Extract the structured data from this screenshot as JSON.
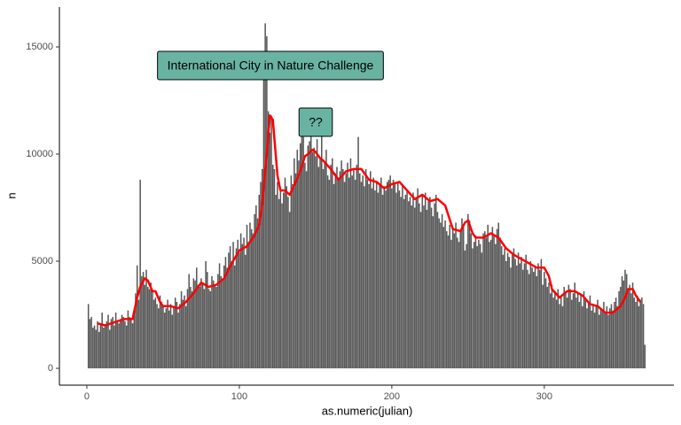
{
  "chart_data": {
    "type": "bar",
    "x_label": "as.numeric(julian)",
    "y_label": "n",
    "annotations": [
      "International City in Nature Challenge",
      "??"
    ],
    "color": "#595959",
    "xlim": [
      -18,
      385
    ],
    "ylim": [
      -785,
      16860
    ],
    "xticks": [
      0,
      100,
      200,
      300
    ],
    "yticks": [
      0,
      5000,
      10000,
      15000
    ],
    "x": [
      1,
      2,
      3,
      4,
      5,
      6,
      7,
      8,
      9,
      10,
      11,
      12,
      13,
      14,
      15,
      16,
      17,
      18,
      19,
      20,
      21,
      22,
      23,
      24,
      25,
      26,
      27,
      28,
      29,
      30,
      31,
      32,
      33,
      34,
      35,
      36,
      37,
      38,
      39,
      40,
      41,
      42,
      43,
      44,
      45,
      46,
      47,
      48,
      49,
      50,
      51,
      52,
      53,
      54,
      55,
      56,
      57,
      58,
      59,
      60,
      61,
      62,
      63,
      64,
      65,
      66,
      67,
      68,
      69,
      70,
      71,
      72,
      73,
      74,
      75,
      76,
      77,
      78,
      79,
      80,
      81,
      82,
      83,
      84,
      85,
      86,
      87,
      88,
      89,
      90,
      91,
      92,
      93,
      94,
      95,
      96,
      97,
      98,
      99,
      100,
      101,
      102,
      103,
      104,
      105,
      106,
      107,
      108,
      109,
      110,
      111,
      112,
      113,
      114,
      115,
      116,
      117,
      118,
      119,
      120,
      121,
      122,
      123,
      124,
      125,
      126,
      127,
      128,
      129,
      130,
      131,
      132,
      133,
      134,
      135,
      136,
      137,
      138,
      139,
      140,
      141,
      142,
      143,
      144,
      145,
      146,
      147,
      148,
      149,
      150,
      151,
      152,
      153,
      154,
      155,
      156,
      157,
      158,
      159,
      160,
      161,
      162,
      163,
      164,
      165,
      166,
      167,
      168,
      169,
      170,
      171,
      172,
      173,
      174,
      175,
      176,
      177,
      178,
      179,
      180,
      181,
      182,
      183,
      184,
      185,
      186,
      187,
      188,
      189,
      190,
      191,
      192,
      193,
      194,
      195,
      196,
      197,
      198,
      199,
      200,
      201,
      202,
      203,
      204,
      205,
      206,
      207,
      208,
      209,
      210,
      211,
      212,
      213,
      214,
      215,
      216,
      217,
      218,
      219,
      220,
      221,
      222,
      223,
      224,
      225,
      226,
      227,
      228,
      229,
      230,
      231,
      232,
      233,
      234,
      235,
      236,
      237,
      238,
      239,
      240,
      241,
      242,
      243,
      244,
      245,
      246,
      247,
      248,
      249,
      250,
      251,
      252,
      253,
      254,
      255,
      256,
      257,
      258,
      259,
      260,
      261,
      262,
      263,
      264,
      265,
      266,
      267,
      268,
      269,
      270,
      271,
      272,
      273,
      274,
      275,
      276,
      277,
      278,
      279,
      280,
      281,
      282,
      283,
      284,
      285,
      286,
      287,
      288,
      289,
      290,
      291,
      292,
      293,
      294,
      295,
      296,
      297,
      298,
      299,
      300,
      301,
      302,
      303,
      304,
      305,
      306,
      307,
      308,
      309,
      310,
      311,
      312,
      313,
      314,
      315,
      316,
      317,
      318,
      319,
      320,
      321,
      322,
      323,
      324,
      325,
      326,
      327,
      328,
      329,
      330,
      331,
      332,
      333,
      334,
      335,
      336,
      337,
      338,
      339,
      340,
      341,
      342,
      343,
      344,
      345,
      346,
      347,
      348,
      349,
      350,
      351,
      352,
      353,
      354,
      355,
      356,
      357,
      358,
      359,
      360,
      361,
      362,
      363,
      364,
      365,
      366
    ],
    "values": [
      3000,
      2300,
      2400,
      1900,
      2000,
      1800,
      2200,
      1700,
      2100,
      2600,
      1900,
      2000,
      2200,
      2500,
      1800,
      2300,
      2400,
      2000,
      2600,
      2200,
      2100,
      2300,
      2500,
      2400,
      2200,
      2000,
      2700,
      2400,
      2300,
      2100,
      2600,
      3500,
      4800,
      3200,
      8800,
      4300,
      4500,
      3900,
      4600,
      3800,
      3700,
      4000,
      3600,
      3200,
      3300,
      3000,
      2800,
      3400,
      3100,
      2900,
      2600,
      2800,
      3200,
      2700,
      3000,
      2500,
      2900,
      3300,
      3100,
      2600,
      3000,
      3600,
      3200,
      3400,
      2900,
      3700,
      4400,
      3800,
      3600,
      4200,
      4100,
      4700,
      3900,
      3800,
      4200,
      4000,
      3700,
      5000,
      4500,
      3700,
      3600,
      4300,
      4100,
      3900,
      3800,
      4400,
      4900,
      4300,
      4100,
      4800,
      5200,
      4700,
      5400,
      5700,
      5000,
      5900,
      4800,
      5600,
      6000,
      5400,
      6300,
      5800,
      6100,
      5300,
      6700,
      5900,
      6800,
      6500,
      6300,
      7200,
      7600,
      7000,
      8100,
      8700,
      9300,
      14000,
      16100,
      15500,
      12000,
      11000,
      11800,
      9500,
      9300,
      8100,
      8700,
      7900,
      8400,
      7700,
      8200,
      8900,
      8500,
      8000,
      7300,
      9000,
      8600,
      9800,
      9100,
      10200,
      9700,
      10500,
      11200,
      10800,
      9600,
      9200,
      10400,
      10600,
      11000,
      10100,
      10300,
      9900,
      10700,
      9400,
      9800,
      10900,
      9300,
      9600,
      10200,
      9000,
      8800,
      9500,
      9800,
      8600,
      9100,
      9400,
      8900,
      9200,
      9700,
      9300,
      8700,
      9100,
      9600,
      8900,
      9800,
      9000,
      9300,
      8800,
      9500,
      10800,
      9100,
      8700,
      9000,
      8500,
      9300,
      8800,
      8600,
      9200,
      8400,
      8900,
      8300,
      8700,
      8200,
      8600,
      8900,
      8100,
      8500,
      8300,
      8700,
      8800,
      9000,
      8400,
      8800,
      8600,
      8200,
      8700,
      8300,
      8000,
      8500,
      7900,
      8100,
      8300,
      7800,
      8000,
      7600,
      8200,
      7500,
      7900,
      8400,
      7700,
      7300,
      8100,
      7600,
      8200,
      7400,
      7800,
      8000,
      7500,
      7100,
      7700,
      8100,
      7300,
      7000,
      6800,
      7200,
      6600,
      6900,
      6400,
      6200,
      6700,
      6000,
      6500,
      6300,
      6800,
      6100,
      5900,
      6400,
      7000,
      6600,
      5500,
      5800,
      7200,
      6900,
      6300,
      5600,
      5900,
      6200,
      5700,
      6000,
      5800,
      5400,
      6300,
      6400,
      6100,
      6700,
      5900,
      6000,
      6600,
      6200,
      5800,
      6500,
      6800,
      6100,
      5700,
      5300,
      5600,
      5000,
      5400,
      5200,
      4700,
      5300,
      5600,
      5100,
      4800,
      5400,
      4900,
      5200,
      4600,
      4900,
      5300,
      4600,
      4400,
      5000,
      4700,
      4500,
      4800,
      4300,
      4900,
      4600,
      5100,
      3900,
      4500,
      4200,
      3800,
      4000,
      3500,
      3900,
      3300,
      3600,
      3200,
      3700,
      3000,
      3400,
      2900,
      3800,
      3600,
      3300,
      3900,
      3700,
      3200,
      3500,
      4000,
      3300,
      3500,
      3100,
      3400,
      2900,
      3600,
      3200,
      2800,
      3100,
      3400,
      2700,
      3000,
      2600,
      2900,
      3200,
      2500,
      2800,
      2700,
      3100,
      2600,
      2900,
      2500,
      2800,
      3000,
      2700,
      3100,
      3300,
      2900,
      3600,
      3800,
      4300,
      4100,
      4600,
      4400,
      3600,
      3900,
      3500,
      4000,
      3300,
      3100,
      3400,
      2900,
      3200,
      3300,
      3000,
      1100
    ],
    "line": {
      "color": "#ff0000",
      "x": [
        7,
        12,
        20,
        25,
        30,
        33,
        35,
        38,
        40,
        43,
        45,
        48,
        50,
        55,
        60,
        65,
        70,
        75,
        80,
        85,
        90,
        95,
        100,
        105,
        110,
        113,
        115,
        118,
        120,
        122,
        125,
        127,
        130,
        133,
        137,
        140,
        143,
        145,
        148,
        150,
        153,
        155,
        160,
        165,
        170,
        175,
        180,
        185,
        190,
        195,
        200,
        205,
        210,
        215,
        220,
        225,
        230,
        235,
        240,
        245,
        248,
        250,
        253,
        255,
        260,
        265,
        270,
        275,
        280,
        285,
        290,
        295,
        300,
        303,
        305,
        310,
        315,
        320,
        325,
        330,
        335,
        340,
        345,
        350,
        353,
        355,
        358,
        360,
        363
      ],
      "values": [
        2100,
        2000,
        2200,
        2300,
        2300,
        3300,
        3800,
        4200,
        4100,
        3600,
        3600,
        3100,
        2900,
        2900,
        2800,
        3100,
        3500,
        4000,
        3800,
        3900,
        4200,
        4900,
        5500,
        5700,
        6200,
        6700,
        7700,
        10000,
        11800,
        11600,
        9000,
        8300,
        8300,
        8100,
        8700,
        9200,
        9900,
        10000,
        10200,
        10100,
        9800,
        9700,
        9300,
        8800,
        9200,
        9300,
        9300,
        8800,
        8700,
        8400,
        8600,
        8700,
        8300,
        7900,
        8100,
        7800,
        7900,
        7600,
        6500,
        6400,
        6800,
        6900,
        6300,
        6100,
        6100,
        6300,
        6100,
        5600,
        5300,
        5100,
        4900,
        4700,
        4700,
        4300,
        3700,
        3300,
        3600,
        3600,
        3400,
        3000,
        2900,
        2600,
        2600,
        2900,
        3300,
        3700,
        3700,
        3400,
        3100
      ]
    }
  }
}
